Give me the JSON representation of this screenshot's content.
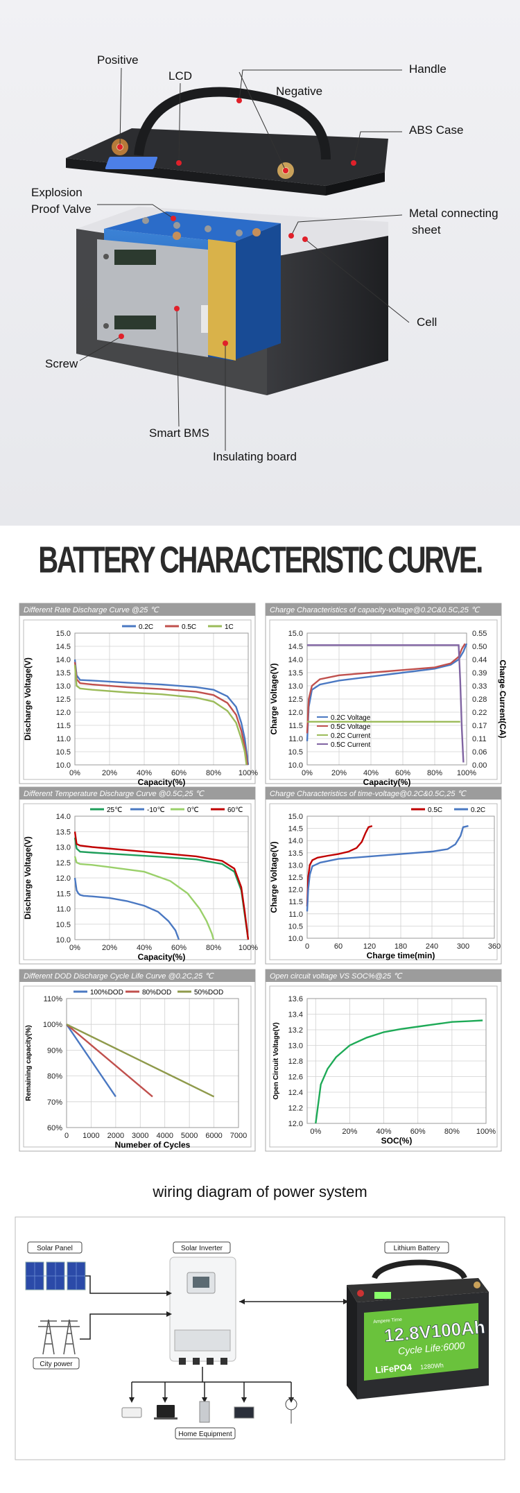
{
  "exploded_view": {
    "labels": {
      "positive": "Positive",
      "lcd": "LCD",
      "handle": "Handle",
      "negative": "Negative",
      "abs_case": "ABS Case",
      "explosion_valve_line1": "Explosion",
      "explosion_valve_line2": "Proof Valve",
      "metal_sheet_line1": "Metal connecting",
      "metal_sheet_line2": "sheet",
      "cell": "Cell",
      "screw": "Screw",
      "smart_bms": "Smart BMS",
      "insulating_board": "Insulating board"
    },
    "colors": {
      "case": "#2a2b2e",
      "cell": "#1f5fb8",
      "board": "#d9b24a",
      "pointer": "#e0202a"
    }
  },
  "section_title": "BATTERY CHARACTERISTIC CURVE.",
  "charts": [
    {
      "id": "c1",
      "panel_title": "Different Rate Discharge Curve @25 ℃",
      "ylabel": "Discharge Voltage(V)",
      "xlabel": "Capacity(%)",
      "x_ticks": [
        "0%",
        "20%",
        "40%",
        "60%",
        "80%",
        "100%"
      ],
      "y_ticks": [
        "10.0",
        "10.5",
        "11.0",
        "11.5",
        "12.0",
        "12.5",
        "13.0",
        "13.5",
        "14.0",
        "14.5",
        "15.0"
      ],
      "legend": [
        "0.2C",
        "0.5C",
        "1C"
      ]
    },
    {
      "id": "c2",
      "panel_title": "Charge Characteristics of capacity-voltage@0.2C&0.5C,25 ℃",
      "ylabel": "Charge Voltage(V)",
      "ylabel_right": "Charge Current(CA)",
      "xlabel": "Capacity(%)",
      "x_ticks": [
        "0%",
        "20%",
        "40%",
        "60%",
        "80%",
        "100%"
      ],
      "y_ticks": [
        "10.0",
        "10.5",
        "11.0",
        "11.5",
        "12.0",
        "12.5",
        "13.0",
        "13.5",
        "14.0",
        "14.5",
        "15.0"
      ],
      "y2_ticks": [
        "0.00",
        "0.06",
        "0.11",
        "0.17",
        "0.22",
        "0.28",
        "0.33",
        "0.39",
        "0.44",
        "0.50",
        "0.55"
      ],
      "legend": [
        "0.2C Voltage",
        "0.5C Voltage",
        "0.2C Current",
        "0.5C Current"
      ]
    },
    {
      "id": "c3",
      "panel_title": "Different Temperature Discharge Curve @0.5C,25 ℃",
      "ylabel": "Discharge Voltage(V)",
      "xlabel": "Capacity(%)",
      "x_ticks": [
        "0%",
        "20%",
        "40%",
        "60%",
        "80%",
        "100%"
      ],
      "y_ticks": [
        "10.0",
        "10.5",
        "11.0",
        "11.5",
        "12.0",
        "12.5",
        "13.0",
        "13.5",
        "14.0"
      ],
      "legend": [
        "25℃",
        "-10℃",
        "0℃",
        "60℃"
      ]
    },
    {
      "id": "c4",
      "panel_title": "Charge Characteristics of time-voltage@0.2C&0.5C,25 ℃",
      "ylabel": "Charge Voltage(V)",
      "xlabel": "Charge time(min)",
      "x_ticks": [
        "0",
        "60",
        "120",
        "180",
        "240",
        "300",
        "360"
      ],
      "y_ticks": [
        "10.0",
        "10.5",
        "11.0",
        "11.5",
        "12.0",
        "12.5",
        "13.0",
        "13.5",
        "14.0",
        "14.5",
        "15.0"
      ],
      "legend": [
        "0.5C",
        "0.2C"
      ]
    },
    {
      "id": "c5",
      "panel_title": "Different DOD Discharge Cycle Life Curve @0.2C,25 ℃",
      "ylabel": "Remaining capacity(%)",
      "xlabel": "Numeber of Cycles",
      "x_ticks": [
        "0",
        "1000",
        "2000",
        "3000",
        "4000",
        "5000",
        "6000",
        "7000"
      ],
      "y_ticks": [
        "60%",
        "70%",
        "80%",
        "90%",
        "100%",
        "110%"
      ],
      "legend": [
        "100%DOD",
        "80%DOD",
        "50%DOD"
      ]
    },
    {
      "id": "c6",
      "panel_title": "Open circuit voltage VS SOC%@25 ℃",
      "ylabel": "Open Circuit Voltage(V)",
      "xlabel": "SOC(%)",
      "x_ticks": [
        "0%",
        "20%",
        "40%",
        "60%",
        "80%",
        "100%"
      ],
      "y_ticks": [
        "12.0",
        "12.2",
        "12.4",
        "12.6",
        "12.8",
        "13.0",
        "13.2",
        "13.4",
        "13.6"
      ],
      "legend": []
    }
  ],
  "chart_data": [
    {
      "type": "line",
      "title": "Different Rate Discharge Curve @25 ℃",
      "xlabel": "Capacity(%)",
      "ylabel": "Discharge Voltage(V)",
      "xlim": [
        0,
        100
      ],
      "ylim": [
        10.0,
        15.0
      ],
      "series": [
        {
          "name": "0.2C",
          "color": "#4a78c2",
          "x": [
            0,
            1,
            3,
            10,
            30,
            50,
            70,
            80,
            88,
            93,
            96,
            98,
            100
          ],
          "y": [
            14.0,
            13.4,
            13.22,
            13.2,
            13.12,
            13.05,
            12.95,
            12.85,
            12.6,
            12.2,
            11.6,
            11.0,
            10.0
          ]
        },
        {
          "name": "0.5C",
          "color": "#c0504d",
          "x": [
            0,
            1,
            3,
            10,
            30,
            50,
            70,
            80,
            88,
            93,
            96,
            98,
            99.5
          ],
          "y": [
            13.9,
            13.25,
            13.1,
            13.05,
            12.95,
            12.88,
            12.78,
            12.65,
            12.35,
            11.9,
            11.3,
            10.7,
            10.0
          ]
        },
        {
          "name": "1C",
          "color": "#9bbb59",
          "x": [
            0,
            1,
            3,
            10,
            30,
            50,
            70,
            80,
            88,
            93,
            96,
            98,
            99
          ],
          "y": [
            13.8,
            13.0,
            12.9,
            12.85,
            12.75,
            12.68,
            12.55,
            12.4,
            12.05,
            11.6,
            11.0,
            10.5,
            10.0
          ]
        }
      ]
    },
    {
      "type": "line",
      "title": "Charge Characteristics of capacity-voltage@0.2C&0.5C,25 ℃",
      "xlabel": "Capacity(%)",
      "ylabel": "Charge Voltage(V)",
      "xlim": [
        0,
        100
      ],
      "ylim": [
        10.0,
        15.0
      ],
      "y2lim": [
        0.0,
        0.55
      ],
      "series": [
        {
          "name": "0.2C Voltage",
          "color": "#4a78c2",
          "axis": "left",
          "x": [
            0,
            1,
            3,
            8,
            20,
            40,
            60,
            80,
            90,
            95,
            98,
            100
          ],
          "y": [
            10.9,
            12.2,
            12.85,
            13.05,
            13.2,
            13.35,
            13.5,
            13.65,
            13.8,
            14.0,
            14.3,
            14.6
          ]
        },
        {
          "name": "0.5C Voltage",
          "color": "#c0504d",
          "axis": "left",
          "x": [
            0,
            1,
            3,
            8,
            20,
            40,
            60,
            80,
            90,
            95,
            97,
            99
          ],
          "y": [
            11.2,
            12.5,
            13.0,
            13.25,
            13.4,
            13.5,
            13.6,
            13.7,
            13.85,
            14.1,
            14.4,
            14.6
          ]
        },
        {
          "name": "0.2C Current",
          "color": "#9bbb59",
          "axis": "right",
          "x": [
            0,
            96
          ],
          "y": [
            0.18,
            0.18
          ]
        },
        {
          "name": "0.5C Current",
          "color": "#8064a2",
          "axis": "right",
          "x": [
            0,
            95,
            96,
            97,
            98
          ],
          "y": [
            0.5,
            0.5,
            0.35,
            0.15,
            0.01
          ]
        }
      ]
    },
    {
      "type": "line",
      "title": "Different Temperature Discharge Curve @0.5C,25 ℃",
      "xlabel": "Capacity(%)",
      "ylabel": "Discharge Voltage(V)",
      "xlim": [
        0,
        100
      ],
      "ylim": [
        10.0,
        14.0
      ],
      "series": [
        {
          "name": "25℃",
          "color": "#1e9e5a",
          "x": [
            0,
            1,
            3,
            10,
            30,
            50,
            70,
            85,
            92,
            96,
            98,
            100
          ],
          "y": [
            13.3,
            12.95,
            12.85,
            12.82,
            12.75,
            12.68,
            12.6,
            12.45,
            12.2,
            11.6,
            10.8,
            10.0
          ]
        },
        {
          "name": "-10℃",
          "color": "#4a78c2",
          "x": [
            0,
            1,
            2,
            3,
            5,
            10,
            20,
            30,
            40,
            48,
            54,
            58,
            60
          ],
          "y": [
            12.0,
            11.6,
            11.5,
            11.45,
            11.42,
            11.4,
            11.35,
            11.25,
            11.1,
            10.9,
            10.6,
            10.3,
            10.0
          ]
        },
        {
          "name": "0℃",
          "color": "#9ad06a",
          "x": [
            0,
            1,
            3,
            10,
            20,
            40,
            55,
            65,
            72,
            76,
            79,
            80
          ],
          "y": [
            12.7,
            12.5,
            12.45,
            12.42,
            12.35,
            12.2,
            11.9,
            11.5,
            11.0,
            10.6,
            10.2,
            10.0
          ]
        },
        {
          "name": "60℃",
          "color": "#c00000",
          "x": [
            0,
            1,
            3,
            10,
            30,
            50,
            70,
            85,
            92,
            96,
            98,
            100
          ],
          "y": [
            13.5,
            13.1,
            13.05,
            13.0,
            12.9,
            12.8,
            12.7,
            12.55,
            12.3,
            11.7,
            10.9,
            10.0
          ]
        }
      ]
    },
    {
      "type": "line",
      "title": "Charge Characteristics of time-voltage@0.2C&0.5C,25 ℃",
      "xlabel": "Charge time(min)",
      "ylabel": "Charge Voltage(V)",
      "xlim": [
        0,
        360
      ],
      "ylim": [
        10.0,
        15.0
      ],
      "series": [
        {
          "name": "0.5C",
          "color": "#c00000",
          "x": [
            0,
            2,
            5,
            10,
            20,
            40,
            60,
            80,
            95,
            105,
            112,
            118,
            125
          ],
          "y": [
            11.3,
            12.5,
            13.0,
            13.2,
            13.3,
            13.38,
            13.45,
            13.55,
            13.7,
            13.95,
            14.3,
            14.55,
            14.6
          ]
        },
        {
          "name": "0.2C",
          "color": "#4a78c2",
          "x": [
            0,
            2,
            5,
            10,
            25,
            60,
            120,
            180,
            240,
            270,
            285,
            295,
            300,
            310
          ],
          "y": [
            11.1,
            12.0,
            12.6,
            12.95,
            13.1,
            13.25,
            13.35,
            13.45,
            13.55,
            13.65,
            13.85,
            14.2,
            14.55,
            14.6
          ]
        }
      ]
    },
    {
      "type": "line",
      "title": "Different DOD Discharge Cycle Life Curve @0.2C,25 ℃",
      "xlabel": "Numeber of Cycles",
      "ylabel": "Remaining capacity(%)",
      "xlim": [
        0,
        7000
      ],
      "ylim": [
        60,
        110
      ],
      "series": [
        {
          "name": "100%DOD",
          "color": "#4a78c2",
          "x": [
            0,
            2000
          ],
          "y": [
            100,
            72
          ]
        },
        {
          "name": "80%DOD",
          "color": "#c0504d",
          "x": [
            0,
            3500
          ],
          "y": [
            100,
            72
          ]
        },
        {
          "name": "50%DOD",
          "color": "#8f9a4b",
          "x": [
            0,
            6000
          ],
          "y": [
            100,
            72
          ]
        }
      ]
    },
    {
      "type": "line",
      "title": "Open circuit voltage VS SOC%@25 ℃",
      "xlabel": "SOC(%)",
      "ylabel": "Open Circuit Voltage(V)",
      "xlim": [
        -5,
        100
      ],
      "ylim": [
        12.0,
        13.6
      ],
      "series": [
        {
          "name": "OCV",
          "color": "#1eaa57",
          "x": [
            0,
            3,
            7,
            12,
            20,
            30,
            40,
            50,
            60,
            70,
            80,
            90,
            98
          ],
          "y": [
            12.0,
            12.5,
            12.7,
            12.85,
            13.0,
            13.1,
            13.17,
            13.21,
            13.24,
            13.27,
            13.3,
            13.31,
            13.32
          ]
        }
      ]
    }
  ],
  "wiring_title": "wiring diagram of power system",
  "wiring": {
    "labels": {
      "solar_panel": "Solar Panel",
      "solar_inverter": "Solar Inverter",
      "lithium_battery": "Lithium Battery",
      "city_power": "City power",
      "home_equipment": "Home Equipment"
    },
    "battery_label": {
      "brand": "Ampere Time",
      "rating": "12.8V100Ah",
      "cycle": "Cycle Life:6000",
      "chem": "LiFePO4",
      "energy": "1280Wh"
    }
  }
}
